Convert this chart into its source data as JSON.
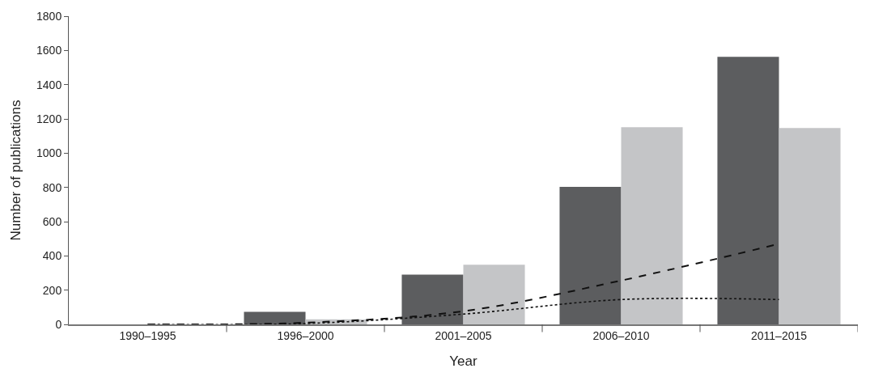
{
  "chart_data": {
    "type": "bar",
    "xlabel": "Year",
    "ylabel": "Number of publications",
    "categories": [
      "1990–1995",
      "1996–2000",
      "2001–2005",
      "2006–2010",
      "2011–2015"
    ],
    "series": [
      {
        "color": "#5c5d5f",
        "values": [
          0,
          73,
          290,
          803,
          1563
        ]
      },
      {
        "color": "#c4c5c7",
        "values": [
          0,
          30,
          348,
          1152,
          1147
        ]
      },
      {
        "type": "line",
        "color": "#111111",
        "line_style": "dashed",
        "values": [
          0,
          10,
          77,
          256,
          470
        ]
      },
      {
        "type": "line",
        "color": "#111111",
        "line_style": "dotted",
        "values": [
          0,
          5,
          60,
          145,
          145
        ]
      }
    ],
    "ylim": [
      0,
      1800
    ],
    "yticks": [
      0,
      200,
      400,
      600,
      800,
      1000,
      1200,
      1400,
      1600,
      1800
    ]
  }
}
